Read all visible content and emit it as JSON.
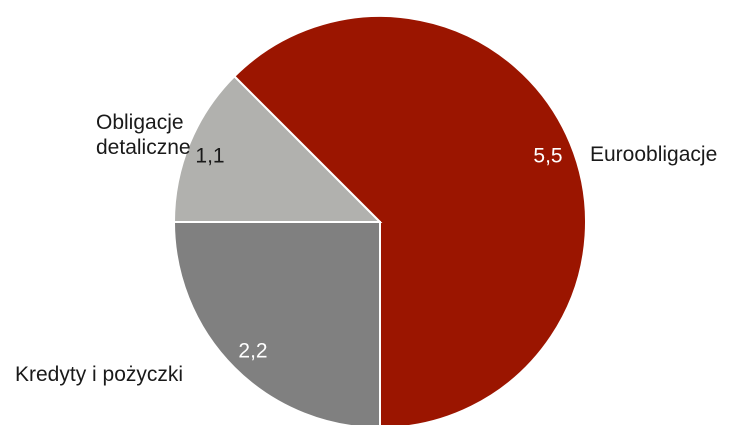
{
  "chart_data": {
    "type": "pie",
    "categories": [
      "Euroobligacje",
      "Kredyty i pożyczki",
      "Obligacje detaliczne"
    ],
    "values": [
      5.5,
      2.2,
      1.1
    ],
    "value_labels": [
      "5,5",
      "2,2",
      "1,1"
    ],
    "colors": [
      "#9b1500",
      "#808080",
      "#b1b1ae"
    ]
  }
}
